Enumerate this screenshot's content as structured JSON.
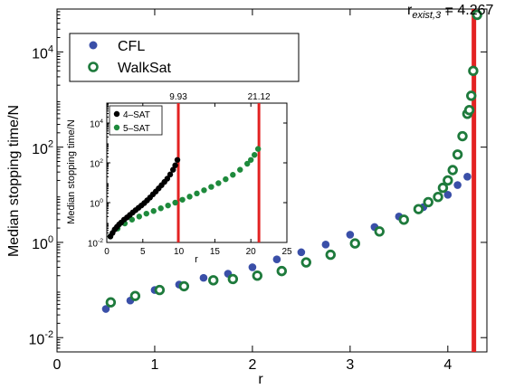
{
  "chart_data": [
    {
      "id": "main",
      "type": "scatter",
      "xlabel": "r",
      "ylabel": "Median stopping time/N",
      "xlim": [
        0,
        4.4
      ],
      "ylim_log10": [
        -2.3,
        4.9
      ],
      "yscale": "log",
      "x_ticks": [
        0,
        1,
        2,
        3,
        4
      ],
      "x_tick_labels": [
        "0",
        "1",
        "2",
        "3",
        "4"
      ],
      "y_ticks_log10": [
        -2,
        0,
        2,
        4
      ],
      "y_tick_labels": [
        {
          "base": "10",
          "exp": "-2"
        },
        {
          "base": "10",
          "exp": "0"
        },
        {
          "base": "10",
          "exp": "2"
        },
        {
          "base": "10",
          "exp": "4"
        }
      ],
      "legend_position": "top-left",
      "vline": {
        "x": 4.267,
        "label_main": "r",
        "label_sub": "exist,3",
        "label_value": " = 4.267",
        "color": "#e32222"
      },
      "series": [
        {
          "name": "CFL",
          "color": "#3a4fa8",
          "marker": "filled-circle",
          "x": [
            0.5,
            0.75,
            1.0,
            1.25,
            1.5,
            1.75,
            2.0,
            2.25,
            2.5,
            2.75,
            3.0,
            3.25,
            3.5,
            3.75,
            4.0,
            4.1,
            4.2
          ],
          "y": [
            0.04,
            0.06,
            0.1,
            0.13,
            0.18,
            0.22,
            0.3,
            0.44,
            0.62,
            0.9,
            1.45,
            2.1,
            3.5,
            5.5,
            10,
            16,
            24
          ]
        },
        {
          "name": "WalkSat",
          "color": "#1e7a3c",
          "marker": "ring",
          "x": [
            0.55,
            0.8,
            1.05,
            1.3,
            1.6,
            1.8,
            2.05,
            2.3,
            2.55,
            2.8,
            3.05,
            3.3,
            3.55,
            3.7,
            3.8,
            3.9,
            3.95,
            4.0,
            4.05,
            4.1,
            4.15,
            4.2,
            4.22,
            4.24,
            4.26,
            4.3
          ],
          "y": [
            0.055,
            0.075,
            0.1,
            0.12,
            0.16,
            0.17,
            0.2,
            0.25,
            0.38,
            0.55,
            0.95,
            1.7,
            3.0,
            5,
            7,
            9,
            14,
            20,
            33,
            70,
            170,
            500,
            600,
            1200,
            4000,
            60000
          ]
        }
      ]
    },
    {
      "id": "inset",
      "type": "scatter",
      "xlabel": "r",
      "ylabel": "Median stopping time/N",
      "xlim": [
        0,
        25
      ],
      "ylim_log10": [
        -2,
        5
      ],
      "yscale": "log",
      "x_ticks": [
        0,
        5,
        10,
        15,
        20,
        25
      ],
      "x_tick_labels": [
        "0",
        "5",
        "10",
        "15",
        "20",
        "25"
      ],
      "y_ticks_log10": [
        -2,
        0,
        2,
        4
      ],
      "y_tick_labels": [
        {
          "base": "10",
          "exp": "-2"
        },
        {
          "base": "10",
          "exp": "0"
        },
        {
          "base": "10",
          "exp": "2"
        },
        {
          "base": "10",
          "exp": "4"
        }
      ],
      "legend_position": "top-left",
      "vlines": [
        {
          "x": 9.93,
          "label": "9.93",
          "color": "#e32222"
        },
        {
          "x": 21.12,
          "label": "21.12",
          "color": "#e32222"
        }
      ],
      "series": [
        {
          "name": "4–SAT",
          "color": "#000000",
          "x": [
            0.5,
            0.8,
            1.1,
            1.4,
            1.7,
            2.0,
            2.4,
            2.8,
            3.2,
            3.6,
            4.0,
            4.4,
            4.8,
            5.2,
            5.6,
            6.0,
            6.4,
            6.8,
            7.2,
            7.6,
            8.0,
            8.4,
            8.8,
            9.2,
            9.5,
            9.8
          ],
          "y": [
            0.02,
            0.03,
            0.045,
            0.06,
            0.08,
            0.1,
            0.14,
            0.18,
            0.24,
            0.32,
            0.42,
            0.55,
            0.72,
            0.95,
            1.3,
            1.8,
            2.6,
            3.6,
            5.2,
            7.5,
            11,
            16,
            26,
            45,
            75,
            140
          ]
        },
        {
          "name": "5–SAT",
          "color": "#1e8a3c",
          "x": [
            0.5,
            1.5,
            2.5,
            3.5,
            4.5,
            5.5,
            6.5,
            7.5,
            8.5,
            9.5,
            10.5,
            11.5,
            12.5,
            13.5,
            14.5,
            15.5,
            16.5,
            17.5,
            18.5,
            19.5,
            20.0,
            20.5,
            21.0
          ],
          "y": [
            0.02,
            0.05,
            0.09,
            0.14,
            0.2,
            0.28,
            0.38,
            0.52,
            0.72,
            1.0,
            1.4,
            2.0,
            2.9,
            4.2,
            6.2,
            9.5,
            15,
            25,
            45,
            90,
            140,
            250,
            500
          ]
        }
      ]
    }
  ]
}
